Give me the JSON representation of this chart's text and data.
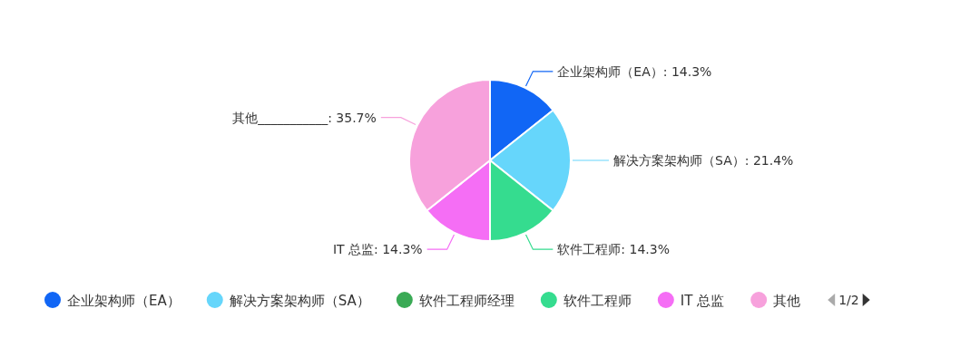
{
  "chart_data": {
    "type": "pie",
    "categories": [
      "企业架构师（EA）",
      "解决方案架构师（SA）",
      "软件工程师经理",
      "软件工程师",
      "IT 总监",
      "其他"
    ],
    "values": [
      14.3,
      21.4,
      0,
      14.3,
      14.3,
      35.7
    ],
    "colors": [
      "#1166f5",
      "#66d6fb",
      "#3aaa55",
      "#35dc8f",
      "#f56ef5",
      "#f7a1dc"
    ],
    "value_labels": [
      "企业架构师（EA）: 14.3%",
      "解决方案架构师（SA）: 21.4%",
      null,
      "软件工程师: 14.3%",
      "IT 总监: 14.3%",
      "其他___________: 35.7%"
    ],
    "legend": "bottom",
    "annotations": [
      "1/2"
    ]
  }
}
